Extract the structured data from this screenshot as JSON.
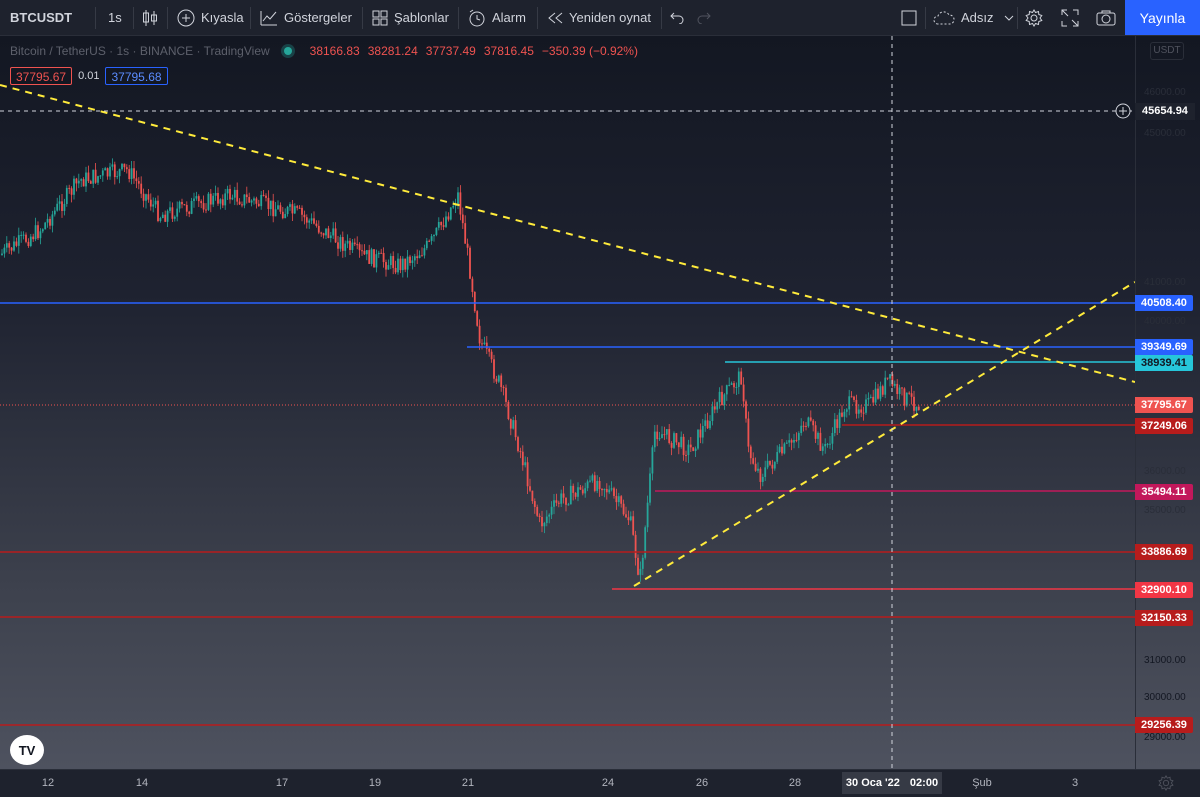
{
  "toolbar": {
    "symbol": "BTCUSDT",
    "interval": "1s",
    "compare_label": "Kıyasla",
    "indicators_label": "Göstergeler",
    "templates_label": "Şablonlar",
    "alert_label": "Alarm",
    "replay_label": "Yeniden oynat",
    "layout_name": "Adsız",
    "publish_label": "Yayınla"
  },
  "legend": {
    "title": "Bitcoin / TetherUS · 1s · BINANCE · TradingView",
    "open": "38166.83",
    "high": "38281.24",
    "low": "37737.49",
    "close": "37816.45",
    "change": "−350.39 (−0.92%)",
    "sell_price": "37795.67",
    "spread": "0.01",
    "buy_price": "37795.68"
  },
  "price_scale": {
    "currency": "USDT",
    "hover_price": "45654.94",
    "ticks": [
      "46000.00",
      "45000.00",
      "41000.00",
      "40000.00",
      "36000.00",
      "35000.00",
      "31000.00",
      "30000.00",
      "29000.00"
    ],
    "levels": [
      {
        "label": "40508.40",
        "color": "#2962ff"
      },
      {
        "label": "39349.69",
        "color": "#2962ff"
      },
      {
        "label": "38939.41",
        "color": "#26c6da"
      },
      {
        "label": "37795.67",
        "color": "#ef5350"
      },
      {
        "label": "37249.06",
        "color": "#b71c1c"
      },
      {
        "label": "35494.11",
        "color": "#c2185b"
      },
      {
        "label": "33886.69",
        "color": "#b71c1c"
      },
      {
        "label": "32900.10",
        "color": "#f23645"
      },
      {
        "label": "32150.33",
        "color": "#b71c1c"
      },
      {
        "label": "29256.39",
        "color": "#b71c1c"
      }
    ]
  },
  "time_scale": {
    "labels": [
      "12",
      "14",
      "17",
      "19",
      "21",
      "24",
      "26",
      "28",
      "Şub",
      "3"
    ],
    "crosshair_date": "30 Oca '22",
    "crosshair_time": "02:00"
  },
  "logo": "TV"
}
